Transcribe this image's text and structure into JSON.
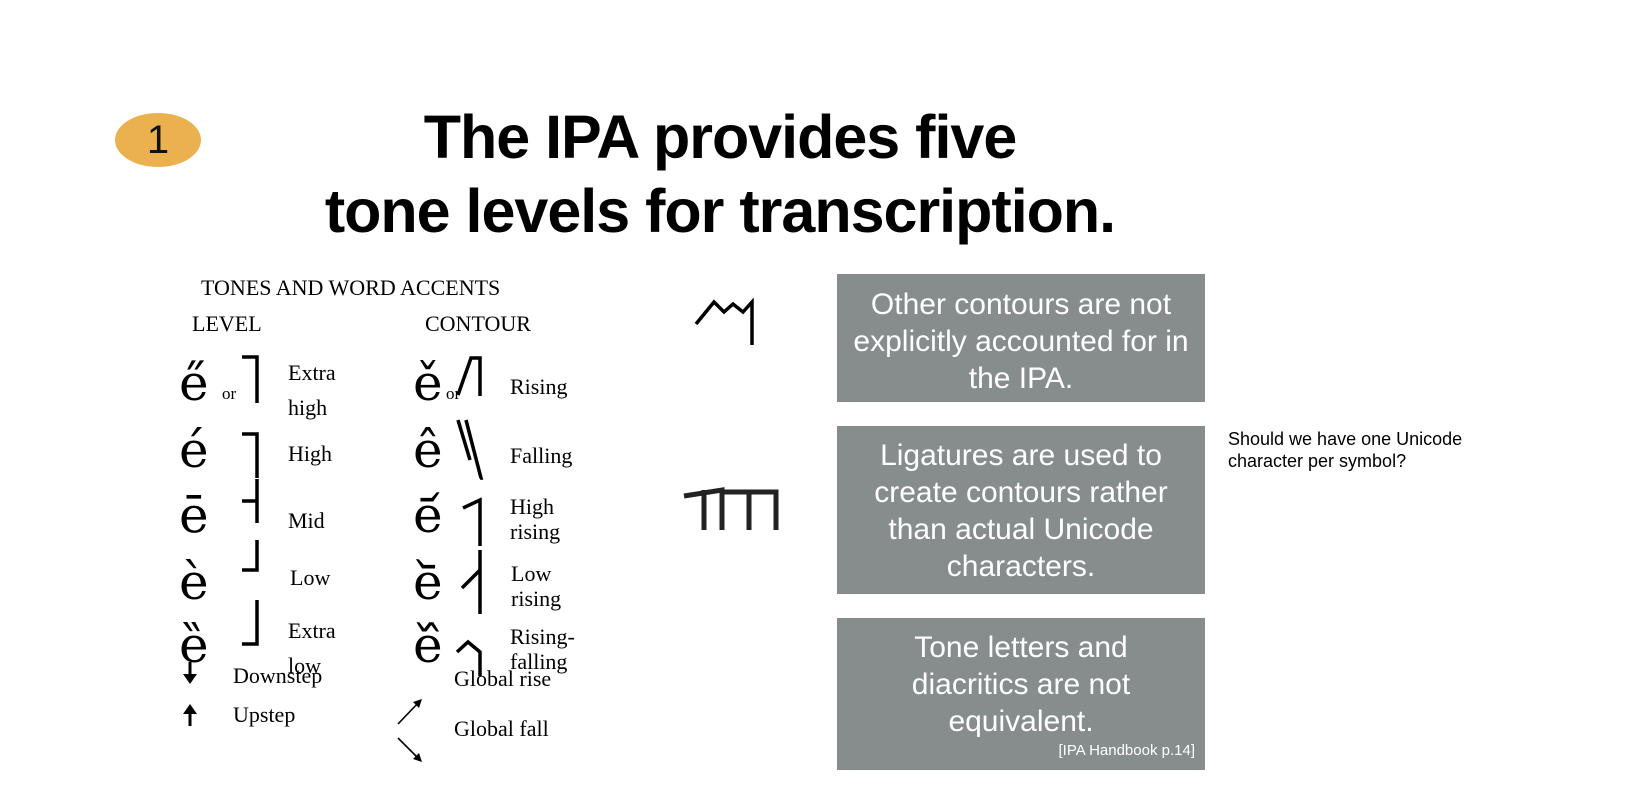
{
  "slide": {
    "number": "1",
    "title_line1": "The IPA provides five",
    "title_line2": "tone levels for transcription."
  },
  "chart": {
    "heading": "TONES AND WORD ACCENTS",
    "level_heading": "LEVEL",
    "contour_heading": "CONTOUR",
    "level": [
      {
        "glyph": "e̋",
        "or": "or",
        "label1": "Extra",
        "label2": "high"
      },
      {
        "glyph": "é",
        "label": "High"
      },
      {
        "glyph": "ē",
        "label": "Mid"
      },
      {
        "glyph": "è",
        "label": "Low"
      },
      {
        "glyph": "ȅ",
        "label1": "Extra",
        "label2": "low"
      }
    ],
    "downstep": {
      "glyph": "ꜜ",
      "label": "Downstep"
    },
    "upstep": {
      "glyph": "ꜛ",
      "label": "Upstep"
    },
    "contour": [
      {
        "glyph": "ě",
        "or": "or",
        "label": "Rising"
      },
      {
        "glyph": "ê",
        "label": "Falling"
      },
      {
        "glyph": "e᷄",
        "label1": "High",
        "label2": "rising"
      },
      {
        "glyph": "e᷅",
        "label1": "Low",
        "label2": "rising"
      },
      {
        "glyph": "e᷈",
        "label1": "Rising-",
        "label2": "falling"
      }
    ],
    "global_rise": "Global rise",
    "global_fall": "Global fall"
  },
  "boxes": [
    {
      "text": "Other contours are not explicitly accounted for in the IPA."
    },
    {
      "text": "Ligatures are used to create contours rather than actual Unicode characters."
    },
    {
      "text": "Tone letters and diacritics are not equivalent.",
      "citation": "[IPA Handbook p.14]"
    }
  ],
  "note": "Should we have one Unicode character per symbol?",
  "colors": {
    "badge": "#ebb14e",
    "box": "#878c8d",
    "box_text": "#ffffff"
  }
}
